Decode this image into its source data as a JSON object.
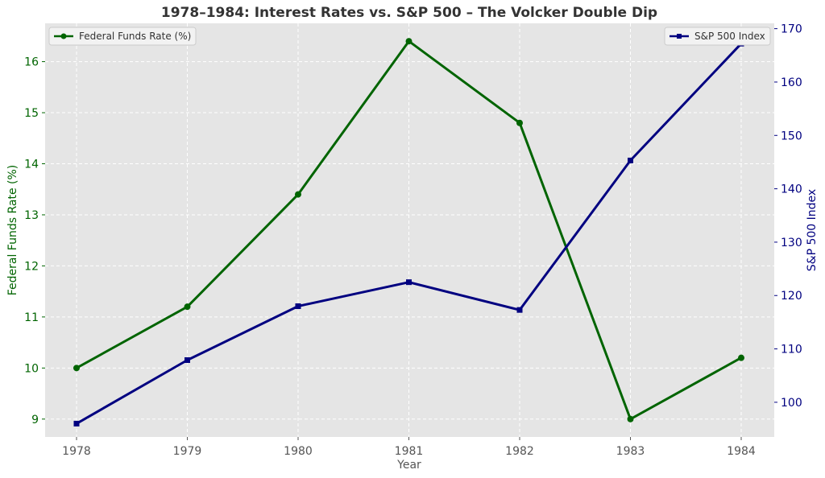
{
  "chart_data": {
    "type": "line",
    "title": "1978–1984: Interest Rates vs. S&P 500 – The Volcker Double Dip",
    "xlabel": "Year",
    "x": [
      "1978",
      "1979",
      "1980",
      "1981",
      "1982",
      "1983",
      "1984"
    ],
    "y_left": {
      "label": "Federal Funds Rate (%)",
      "ylim": [
        8.65,
        16.75
      ],
      "ticks": [
        9,
        10,
        11,
        12,
        13,
        14,
        15,
        16
      ],
      "color": "#006400"
    },
    "y_right": {
      "label": "S&P 500 Index",
      "ylim": [
        93.5,
        171
      ],
      "ticks": [
        100,
        110,
        120,
        130,
        140,
        150,
        160,
        170
      ],
      "color": "#000080"
    },
    "series": [
      {
        "name": "Federal Funds Rate (%)",
        "axis": "left",
        "marker": "circle",
        "color": "#006400",
        "values": [
          10.0,
          11.2,
          13.4,
          16.4,
          14.8,
          9.0,
          10.2
        ]
      },
      {
        "name": "S&P 500 Index",
        "axis": "right",
        "marker": "square",
        "color": "#000080",
        "values": [
          96.0,
          107.9,
          118.0,
          122.5,
          117.3,
          145.3,
          167.2
        ]
      }
    ],
    "grid": true,
    "legend": [
      "top-left",
      "top-right"
    ],
    "background": "#e5e5e5"
  }
}
